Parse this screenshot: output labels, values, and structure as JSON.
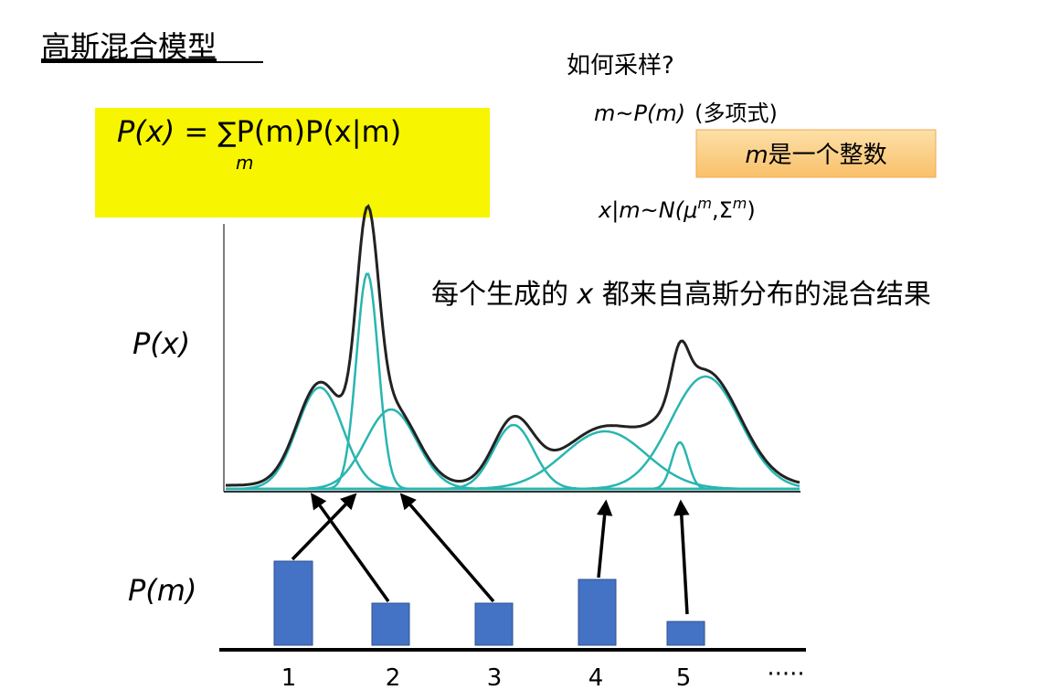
{
  "title": "高斯混合模型",
  "question": "如何采样?",
  "formula": {
    "lhs": "P(x) = ",
    "sum": "∑",
    "sub": "m",
    "rhs": "P(m)P(x|m)"
  },
  "step1": {
    "expr": "m~P(m)",
    "note": "(多项式)"
  },
  "integer_note": {
    "var": "m",
    "text": "是一个整数"
  },
  "step2": {
    "lhs": "x|m~N(",
    "mu": "μ",
    "sep": ",",
    "sigma": "Σ",
    "sup": "m",
    "close": ")"
  },
  "statement": {
    "before": "每个生成的 ",
    "var": "x",
    "after": " 都来自高斯分布的混合结果"
  },
  "y_label_top": "P(x)",
  "y_label_bottom": "P(m)",
  "bar_labels": [
    "1",
    "2",
    "3",
    "4",
    "5"
  ],
  "ellipsis": "·····"
}
